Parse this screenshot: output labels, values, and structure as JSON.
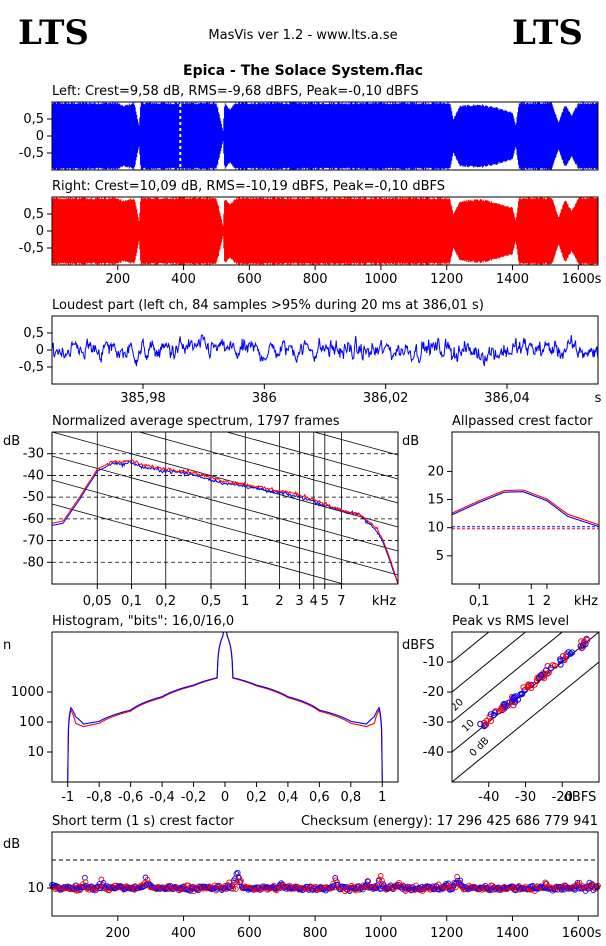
{
  "header": {
    "logo_left": "LTS",
    "logo_right": "LTS",
    "app": "MasVis ver 1.2 - www.lts.a.se",
    "file_title": "Epica - The Solace System.flac"
  },
  "colors": {
    "left": "#0000ff",
    "right": "#ff0000",
    "grid": "#000000",
    "background": "#ffffff"
  },
  "chart_data": [
    {
      "id": "left-waveform",
      "type": "area",
      "title": "Left: Crest=9,58 dB, RMS=-9,68 dBFS, Peak=-0,10 dBFS",
      "xlim": [
        0,
        1660
      ],
      "ylim": [
        -1,
        1
      ],
      "yticks": [
        0.5,
        0,
        -0.5
      ],
      "ytick_labels": [
        "0,5",
        "0",
        "-0,5"
      ],
      "envelope": {
        "t": [
          0,
          150,
          200,
          215,
          250,
          265,
          270,
          300,
          400,
          410,
          500,
          520,
          525,
          540,
          560,
          600,
          800,
          1100,
          1150,
          1210,
          1220,
          1240,
          1300,
          1350,
          1400,
          1410,
          1420,
          1500,
          1520,
          1540,
          1560,
          1580,
          1600,
          1660
        ],
        "amp": [
          1,
          1,
          1,
          0.9,
          1,
          0.3,
          1,
          1,
          1,
          1,
          1,
          0.15,
          1,
          0.8,
          1,
          1,
          1,
          1,
          1,
          1,
          0.5,
          0.9,
          0.95,
          0.85,
          0.7,
          0.3,
          1,
          1,
          1,
          0.4,
          0.95,
          0.6,
          1,
          1
        ]
      },
      "series": [
        {
          "name": "",
          "values": []
        }
      ]
    },
    {
      "id": "right-waveform",
      "type": "area",
      "title": "Right: Crest=10,09 dB, RMS=-10,19 dBFS, Peak=-0,10 dBFS",
      "xlim": [
        0,
        1660
      ],
      "ylim": [
        -1,
        1
      ],
      "xticks": [
        200,
        400,
        600,
        800,
        1000,
        1200,
        1400,
        1600
      ],
      "xtick_labels": [
        "200",
        "400",
        "600",
        "800",
        "1000",
        "1200",
        "1400",
        "1600"
      ],
      "xunit": "s",
      "yticks": [
        0.5,
        0,
        -0.5
      ],
      "ytick_labels": [
        "0,5",
        "0",
        "-0,5"
      ],
      "envelope": {
        "t": [
          0,
          150,
          200,
          215,
          250,
          265,
          270,
          300,
          400,
          500,
          520,
          525,
          540,
          560,
          600,
          800,
          1100,
          1150,
          1210,
          1220,
          1240,
          1300,
          1350,
          1400,
          1410,
          1420,
          1500,
          1520,
          1540,
          1560,
          1580,
          1600,
          1660
        ],
        "amp": [
          1,
          1,
          1,
          0.9,
          1,
          0.3,
          1,
          1,
          1,
          1,
          0.15,
          1,
          0.8,
          1,
          1,
          1,
          1,
          1,
          1,
          0.5,
          0.9,
          0.95,
          0.85,
          0.7,
          0.3,
          1,
          1,
          1,
          0.4,
          0.95,
          0.6,
          1,
          1
        ]
      }
    },
    {
      "id": "loudest-part",
      "type": "line",
      "title": "Loudest part (left  ch, 84 samples >95% during 20 ms at 386,01 s)",
      "xlim": [
        385.965,
        386.055
      ],
      "ylim": [
        -1,
        1
      ],
      "xticks": [
        385.98,
        386,
        386.02,
        386.04
      ],
      "xtick_labels": [
        "385,98",
        "386",
        "386,02",
        "386,04"
      ],
      "xunit": "s",
      "yticks": [
        0.5,
        0,
        -0.5
      ],
      "ytick_labels": [
        "0,5",
        "0",
        "-0,5"
      ],
      "noise": {
        "amplitude": 0.35,
        "samples": 900
      }
    },
    {
      "id": "average-spectrum",
      "type": "line",
      "title": "Normalized average spectrum, 1797 frames",
      "ylabel": "dB",
      "xunit": "kHz",
      "xscale": "log",
      "xlim": [
        0.02,
        22
      ],
      "ylim": [
        -90,
        -20
      ],
      "yticks": [
        -30,
        -40,
        -50,
        -60,
        -70,
        -80
      ],
      "ytick_labels": [
        "-30",
        "-40",
        "-50",
        "-60",
        "-70",
        "-80"
      ],
      "xticks": [
        0.05,
        0.1,
        0.2,
        0.5,
        1,
        2,
        3,
        4,
        5,
        7
      ],
      "xtick_labels": [
        "0,05",
        "0,1",
        "0,2",
        "0,5",
        "1",
        "2",
        "3",
        "4",
        "5",
        "7"
      ],
      "series": [
        {
          "name": "",
          "x": [
            0.02,
            0.025,
            0.03,
            0.035,
            0.04,
            0.05,
            0.06,
            0.07,
            0.08,
            0.1,
            0.12,
            0.15,
            0.2,
            0.3,
            0.5,
            0.7,
            1,
            1.5,
            2,
            3,
            4,
            5,
            6,
            7,
            8,
            10,
            12,
            14,
            16,
            18,
            20,
            22
          ],
          "y": [
            -63,
            -62,
            -56,
            -51,
            -46,
            -38,
            -36,
            -34,
            -35,
            -34,
            -36,
            -37,
            -38,
            -39,
            -42,
            -44,
            -45,
            -47,
            -48,
            -50,
            -52,
            -54,
            -55,
            -56,
            -57,
            -58,
            -62,
            -65,
            -70,
            -77,
            -84,
            -90
          ]
        },
        {
          "name": "",
          "x": [
            0.02,
            0.025,
            0.03,
            0.035,
            0.04,
            0.05,
            0.06,
            0.07,
            0.08,
            0.1,
            0.12,
            0.15,
            0.2,
            0.3,
            0.5,
            0.7,
            1,
            1.5,
            2,
            3,
            4,
            5,
            6,
            7,
            8,
            10,
            12,
            14,
            16,
            18,
            20,
            22
          ],
          "y": [
            -62,
            -61,
            -55,
            -50,
            -45,
            -37,
            -35,
            -33,
            -34,
            -33,
            -35,
            -36,
            -37,
            -38,
            -41,
            -43,
            -44,
            -46,
            -47,
            -49,
            -51,
            -53,
            -55,
            -56,
            -57,
            -58,
            -61,
            -64,
            -69,
            -76,
            -83,
            -90
          ]
        }
      ]
    },
    {
      "id": "allpassed-crest-factor",
      "type": "line",
      "title": "Allpassed crest factor",
      "ylabel": "dB",
      "xunit": "kHz",
      "xscale": "log",
      "xlim": [
        0.03,
        20
      ],
      "ylim": [
        0,
        27
      ],
      "yticks": [
        20,
        15,
        10,
        5
      ],
      "ytick_labels": [
        "20",
        "15",
        "10",
        "5"
      ],
      "xticks": [
        0.1,
        1,
        2
      ],
      "xtick_labels": [
        "0,1",
        "1",
        "2"
      ],
      "reference_level": 10,
      "series": [
        {
          "name": "",
          "x": [
            0.03,
            0.1,
            0.3,
            0.7,
            2,
            5,
            20
          ],
          "y": [
            12.3,
            14.5,
            16.3,
            16.4,
            14.8,
            12,
            10.2
          ]
        },
        {
          "name": "",
          "x": [
            0.03,
            0.1,
            0.3,
            0.7,
            2,
            5,
            20
          ],
          "y": [
            12.6,
            14.8,
            16.6,
            16.7,
            15.1,
            12.4,
            10.5
          ]
        }
      ]
    },
    {
      "id": "histogram",
      "type": "line",
      "title": "Histogram, \"bits\": 16,0/16,0",
      "ylabel": "n",
      "yscale": "log",
      "xlim": [
        -1.1,
        1.1
      ],
      "ylim": [
        1,
        100000
      ],
      "yticks": [
        1000,
        100,
        10
      ],
      "ytick_labels": [
        "1000",
        "100",
        "10"
      ],
      "xticks": [
        -1,
        -0.8,
        -0.6,
        -0.4,
        -0.2,
        0,
        0.2,
        0.4,
        0.6,
        0.8,
        1
      ],
      "xtick_labels": [
        "-1",
        "-0,8",
        "-0,6",
        "-0,4",
        "-0,2",
        "0",
        "0,2",
        "0,4",
        "0,6",
        "0,8",
        "1"
      ],
      "series": [
        {
          "name": "",
          "x": [
            -1,
            -0.98,
            -0.95,
            -0.9,
            -0.8,
            -0.6,
            -0.4,
            -0.2,
            -0.05,
            0,
            0.05,
            0.2,
            0.4,
            0.6,
            0.8,
            0.9,
            0.95,
            0.98,
            1
          ],
          "y": [
            1,
            300,
            150,
            85,
            105,
            250,
            700,
            1700,
            3000,
            100000,
            3000,
            1700,
            700,
            250,
            105,
            85,
            150,
            300,
            1
          ]
        },
        {
          "name": "",
          "x": [
            -1,
            -0.98,
            -0.95,
            -0.9,
            -0.8,
            -0.6,
            -0.4,
            -0.2,
            -0.05,
            0,
            0.05,
            0.2,
            0.4,
            0.6,
            0.8,
            0.9,
            0.95,
            0.98,
            1
          ],
          "y": [
            1,
            250,
            90,
            70,
            90,
            230,
            650,
            1600,
            2900,
            100000,
            2900,
            1600,
            650,
            230,
            90,
            70,
            90,
            250,
            1
          ]
        }
      ]
    },
    {
      "id": "peak-vs-rms",
      "type": "scatter",
      "title": "Peak vs RMS level",
      "ylabel": "dBFS",
      "xunit": "dBFS",
      "xlim": [
        -50,
        -10
      ],
      "ylim": [
        -50,
        0
      ],
      "xticks": [
        -40,
        -30,
        -20
      ],
      "xtick_labels": [
        "-40",
        "-30",
        "-20"
      ],
      "yticks": [
        -10,
        -20,
        -30,
        -40
      ],
      "ytick_labels": [
        "-10",
        "-20",
        "-30",
        "-40"
      ],
      "crest_lines": [
        0,
        10,
        20,
        30,
        40
      ],
      "crest_line_labels": [
        "0 dB",
        "10",
        "20",
        "30",
        "40"
      ],
      "cluster": {
        "x_range": [
          -42,
          -13
        ],
        "offset_mean": 10.5,
        "offset_spread": 3,
        "count": 90
      }
    },
    {
      "id": "short-term-crest-factor",
      "type": "scatter",
      "title": "Short term (1 s) crest factor",
      "annotation": "Checksum (energy):  17 296 425 686 779 941",
      "ylabel": "dB",
      "xlim": [
        0,
        1660
      ],
      "ylim": [
        0,
        30
      ],
      "yticks": [
        10
      ],
      "ytick_labels": [
        "10"
      ],
      "xticks": [
        200,
        400,
        600,
        800,
        1000,
        1200,
        1400,
        1600
      ],
      "xtick_labels": [
        "200",
        "400",
        "600",
        "800",
        "1000",
        "1200",
        "1400",
        "1600"
      ],
      "xunit": "s",
      "reference_level": 20,
      "base_level": 10,
      "count": 830,
      "spikes": [
        [
          10,
          12
        ],
        [
          100,
          14
        ],
        [
          150,
          13
        ],
        [
          200,
          12
        ],
        [
          280,
          13
        ],
        [
          290,
          14
        ],
        [
          540,
          12
        ],
        [
          560,
          18
        ],
        [
          570,
          13
        ],
        [
          700,
          12
        ],
        [
          860,
          15
        ],
        [
          960,
          13
        ],
        [
          1000,
          16
        ],
        [
          1050,
          12
        ],
        [
          1200,
          12
        ],
        [
          1230,
          14
        ],
        [
          1240,
          13
        ],
        [
          1500,
          12
        ],
        [
          1600,
          13
        ],
        [
          1640,
          12
        ]
      ]
    }
  ]
}
